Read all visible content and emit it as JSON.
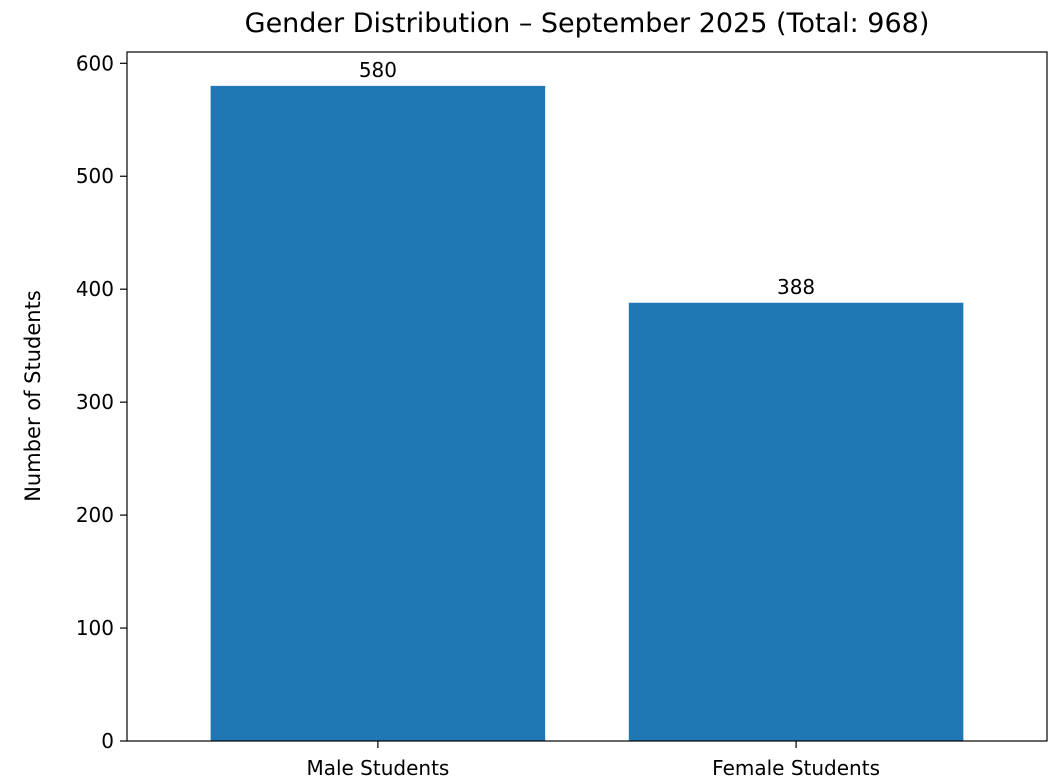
{
  "chart_data": {
    "type": "bar",
    "title": "Gender Distribution – September 2025 (Total: 968)",
    "xlabel": "",
    "ylabel": "Number of Students",
    "categories": [
      "Male Students",
      "Female Students"
    ],
    "values": [
      580,
      388
    ],
    "data_labels": [
      "580",
      "388"
    ],
    "ylim": [
      0,
      610
    ],
    "yticks": [
      0,
      100,
      200,
      300,
      400,
      500,
      600
    ],
    "grid": false,
    "bar_color": "#1f77b4"
  }
}
